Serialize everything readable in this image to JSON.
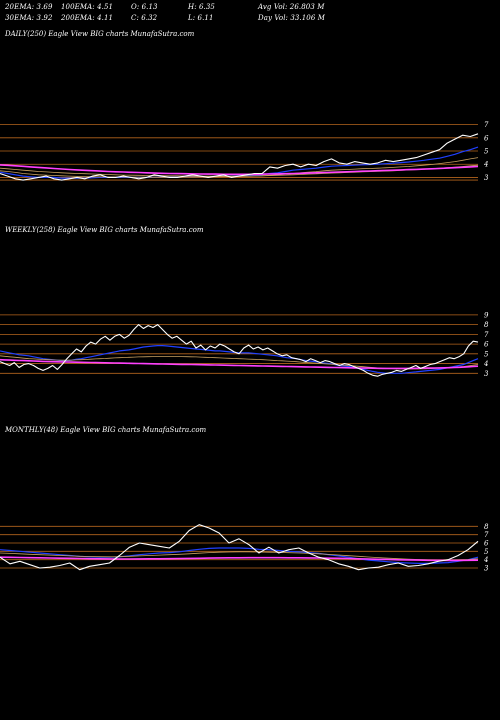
{
  "header": {
    "row1": [
      {
        "text": "20EMA: 3.69"
      },
      {
        "text": "100EMA: 4.51"
      },
      {
        "text": "O: 6.13"
      },
      {
        "text": "H: 6.35"
      },
      {
        "text": "Avg Vol: 26.803  M"
      }
    ],
    "row2": [
      {
        "text": "30EMA: 3.92"
      },
      {
        "text": "200EMA: 4.11"
      },
      {
        "text": "C: 6.32"
      },
      {
        "text": "L: 6.11"
      },
      {
        "text": "Day Vol: 33.106  M"
      }
    ]
  },
  "colors": {
    "background": "#000000",
    "price": "#ffffff",
    "level_line": "#b5651d",
    "ema_fast": "#2040ff",
    "ema_slow": "#ff40ff",
    "ema_mid": "#c8a060"
  },
  "chart_data": [
    {
      "type": "line",
      "label": "DAILY(250) Eagle   View  BIG charts MunafaSutra.com",
      "yticks": [
        "7",
        "6",
        "5",
        "4",
        "3"
      ],
      "ylim": [
        2.2,
        7.5
      ],
      "levels": [
        7,
        6,
        5,
        4,
        3,
        2.8
      ],
      "series": [
        {
          "role": "price",
          "values": [
            3.3,
            3.1,
            2.9,
            2.8,
            2.9,
            3.0,
            3.1,
            2.9,
            2.8,
            2.9,
            3.0,
            2.9,
            3.1,
            3.2,
            3.0,
            3.0,
            3.1,
            3.0,
            2.9,
            3.0,
            3.2,
            3.1,
            3.0,
            3.0,
            3.1,
            3.2,
            3.1,
            3.0,
            3.1,
            3.2,
            3.0,
            3.1,
            3.2,
            3.3,
            3.3,
            3.8,
            3.7,
            3.9,
            4.0,
            3.8,
            4.0,
            3.9,
            4.2,
            4.4,
            4.1,
            4.0,
            4.2,
            4.1,
            4.0,
            4.1,
            4.3,
            4.2,
            4.3,
            4.4,
            4.5,
            4.7,
            4.9,
            5.1,
            5.6,
            5.9,
            6.2,
            6.1,
            6.3
          ]
        },
        {
          "role": "ema_fast",
          "values": [
            3.4,
            3.3,
            3.2,
            3.1,
            3.05,
            3.0,
            3.0,
            3.0,
            2.95,
            2.95,
            2.95,
            2.95,
            2.97,
            3.0,
            3.0,
            3.0,
            3.0,
            3.0,
            3.0,
            3.0,
            3.02,
            3.03,
            3.03,
            3.03,
            3.05,
            3.06,
            3.07,
            3.07,
            3.08,
            3.1,
            3.1,
            3.12,
            3.15,
            3.18,
            3.2,
            3.3,
            3.35,
            3.45,
            3.55,
            3.6,
            3.65,
            3.7,
            3.78,
            3.85,
            3.88,
            3.9,
            3.93,
            3.96,
            3.98,
            4.0,
            4.04,
            4.08,
            4.12,
            4.17,
            4.23,
            4.3,
            4.38,
            4.46,
            4.6,
            4.75,
            4.95,
            5.1,
            5.3
          ]
        },
        {
          "role": "ema_mid",
          "values": [
            3.5,
            3.45,
            3.38,
            3.3,
            3.25,
            3.2,
            3.18,
            3.15,
            3.12,
            3.1,
            3.08,
            3.06,
            3.05,
            3.05,
            3.04,
            3.03,
            3.03,
            3.02,
            3.02,
            3.02,
            3.02,
            3.02,
            3.02,
            3.02,
            3.03,
            3.03,
            3.04,
            3.04,
            3.05,
            3.06,
            3.06,
            3.07,
            3.08,
            3.1,
            3.12,
            3.16,
            3.2,
            3.25,
            3.3,
            3.35,
            3.4,
            3.44,
            3.5,
            3.55,
            3.58,
            3.6,
            3.63,
            3.66,
            3.68,
            3.7,
            3.73,
            3.76,
            3.8,
            3.83,
            3.88,
            3.93,
            3.98,
            4.05,
            4.12,
            4.2,
            4.3,
            4.4,
            4.5
          ]
        },
        {
          "role": "ema_mid",
          "values": [
            3.7,
            3.65,
            3.6,
            3.55,
            3.5,
            3.45,
            3.42,
            3.38,
            3.35,
            3.32,
            3.3,
            3.28,
            3.26,
            3.24,
            3.22,
            3.2,
            3.18,
            3.17,
            3.16,
            3.15,
            3.14,
            3.13,
            3.12,
            3.12,
            3.11,
            3.11,
            3.1,
            3.1,
            3.1,
            3.1,
            3.1,
            3.1,
            3.1,
            3.11,
            3.12,
            3.14,
            3.16,
            3.18,
            3.2,
            3.22,
            3.25,
            3.27,
            3.3,
            3.33,
            3.35,
            3.37,
            3.4,
            3.42,
            3.44,
            3.46,
            3.48,
            3.5,
            3.53,
            3.56,
            3.59,
            3.62,
            3.66,
            3.7,
            3.74,
            3.78,
            3.83,
            3.88,
            3.93
          ]
        },
        {
          "role": "ema_slow",
          "values": [
            3.95,
            3.92,
            3.88,
            3.84,
            3.8,
            3.76,
            3.72,
            3.68,
            3.64,
            3.6,
            3.57,
            3.54,
            3.51,
            3.48,
            3.45,
            3.43,
            3.41,
            3.39,
            3.37,
            3.35,
            3.33,
            3.31,
            3.3,
            3.29,
            3.28,
            3.27,
            3.26,
            3.25,
            3.25,
            3.24,
            3.24,
            3.24,
            3.24,
            3.24,
            3.25,
            3.26,
            3.27,
            3.28,
            3.3,
            3.31,
            3.33,
            3.35,
            3.37,
            3.39,
            3.41,
            3.43,
            3.45,
            3.47,
            3.49,
            3.51,
            3.53,
            3.55,
            3.57,
            3.59,
            3.61,
            3.63,
            3.65,
            3.68,
            3.71,
            3.74,
            3.77,
            3.8,
            3.83
          ]
        }
      ]
    },
    {
      "type": "line",
      "label": "WEEKLY(258) Eagle   View  BIG charts MunafaSutra.com",
      "yticks": [
        "9",
        "8",
        "7",
        "6",
        "5",
        "4",
        "3"
      ],
      "ylim": [
        1.8,
        9.5
      ],
      "levels": [
        9,
        8,
        7,
        6,
        5,
        4,
        3
      ],
      "series": [
        {
          "role": "price",
          "values": [
            4.2,
            4.0,
            3.8,
            4.1,
            3.6,
            3.9,
            4.0,
            3.8,
            3.5,
            3.3,
            3.5,
            3.8,
            3.4,
            3.9,
            4.5,
            5.0,
            5.5,
            5.2,
            5.8,
            6.2,
            6.0,
            6.5,
            6.8,
            6.4,
            6.8,
            7.0,
            6.6,
            6.9,
            7.5,
            8.0,
            7.6,
            7.9,
            7.7,
            8.0,
            7.5,
            7.0,
            6.6,
            6.8,
            6.4,
            6.0,
            6.3,
            5.6,
            5.9,
            5.4,
            5.8,
            5.6,
            6.0,
            5.8,
            5.5,
            5.2,
            5.0,
            5.6,
            5.9,
            5.5,
            5.7,
            5.4,
            5.6,
            5.3,
            5.0,
            4.8,
            4.9,
            4.6,
            4.5,
            4.4,
            4.2,
            4.5,
            4.3,
            4.1,
            4.3,
            4.2,
            4.0,
            3.8,
            4.0,
            3.9,
            3.7,
            3.5,
            3.3,
            3.0,
            2.8,
            2.7,
            2.9,
            3.0,
            3.1,
            3.3,
            3.2,
            3.4,
            3.6,
            3.8,
            3.5,
            3.7,
            3.9,
            4.0,
            4.2,
            4.4,
            4.6,
            4.5,
            4.7,
            5.0,
            5.8,
            6.3,
            6.2
          ]
        },
        {
          "role": "ema_fast",
          "values": [
            5.3,
            5.2,
            5.1,
            5.0,
            4.9,
            4.85,
            4.8,
            4.7,
            4.6,
            4.5,
            4.45,
            4.4,
            4.35,
            4.3,
            4.3,
            4.35,
            4.45,
            4.5,
            4.6,
            4.7,
            4.8,
            4.9,
            5.0,
            5.1,
            5.2,
            5.3,
            5.35,
            5.4,
            5.5,
            5.6,
            5.7,
            5.75,
            5.8,
            5.85,
            5.85,
            5.8,
            5.75,
            5.7,
            5.65,
            5.6,
            5.55,
            5.5,
            5.45,
            5.4,
            5.35,
            5.3,
            5.3,
            5.25,
            5.2,
            5.15,
            5.1,
            5.1,
            5.1,
            5.05,
            5.0,
            4.95,
            4.9,
            4.85,
            4.8,
            4.7,
            4.6,
            4.55,
            4.5,
            4.4,
            4.3,
            4.25,
            4.2,
            4.1,
            4.05,
            4.0,
            3.9,
            3.8,
            3.75,
            3.7,
            3.6,
            3.5,
            3.4,
            3.3,
            3.2,
            3.1,
            3.05,
            3.0,
            3.0,
            3.0,
            3.0,
            3.05,
            3.1,
            3.15,
            3.2,
            3.25,
            3.3,
            3.35,
            3.4,
            3.5,
            3.6,
            3.7,
            3.8,
            3.9,
            4.1,
            4.3,
            4.5
          ]
        },
        {
          "role": "ema_mid",
          "values": [
            4.8,
            4.75,
            4.7,
            4.65,
            4.6,
            4.55,
            4.5,
            4.48,
            4.45,
            4.42,
            4.4,
            4.38,
            4.36,
            4.35,
            4.35,
            4.36,
            4.38,
            4.4,
            4.42,
            4.45,
            4.48,
            4.5,
            4.52,
            4.55,
            4.58,
            4.6,
            4.62,
            4.64,
            4.66,
            4.68,
            4.7,
            4.71,
            4.72,
            4.73,
            4.74,
            4.74,
            4.74,
            4.73,
            4.72,
            4.71,
            4.7,
            4.68,
            4.66,
            4.64,
            4.62,
            4.6,
            4.58,
            4.56,
            4.54,
            4.52,
            4.5,
            4.48,
            4.46,
            4.44,
            4.42,
            4.4,
            4.37,
            4.34,
            4.31,
            4.28,
            4.25,
            4.22,
            4.19,
            4.15,
            4.11,
            4.08,
            4.05,
            4.01,
            3.98,
            3.95,
            3.91,
            3.87,
            3.84,
            3.8,
            3.76,
            3.72,
            3.68,
            3.64,
            3.6,
            3.56,
            3.53,
            3.5,
            3.48,
            3.46,
            3.45,
            3.44,
            3.44,
            3.44,
            3.45,
            3.46,
            3.48,
            3.5,
            3.52,
            3.55,
            3.58,
            3.62,
            3.66,
            3.7,
            3.76,
            3.83,
            3.9
          ]
        },
        {
          "role": "ema_slow",
          "values": [
            4.4,
            4.38,
            4.36,
            4.34,
            4.32,
            4.3,
            4.28,
            4.26,
            4.24,
            4.22,
            4.2,
            4.19,
            4.18,
            4.17,
            4.16,
            4.15,
            4.14,
            4.13,
            4.12,
            4.11,
            4.1,
            4.09,
            4.08,
            4.07,
            4.06,
            4.05,
            4.04,
            4.03,
            4.02,
            4.01,
            4.0,
            3.99,
            3.98,
            3.97,
            3.96,
            3.95,
            3.94,
            3.93,
            3.92,
            3.91,
            3.9,
            3.89,
            3.88,
            3.87,
            3.86,
            3.85,
            3.84,
            3.83,
            3.82,
            3.81,
            3.8,
            3.79,
            3.78,
            3.77,
            3.76,
            3.75,
            3.74,
            3.73,
            3.72,
            3.71,
            3.7,
            3.69,
            3.68,
            3.67,
            3.66,
            3.65,
            3.64,
            3.63,
            3.62,
            3.61,
            3.6,
            3.59,
            3.58,
            3.57,
            3.56,
            3.55,
            3.54,
            3.53,
            3.52,
            3.51,
            3.5,
            3.5,
            3.5,
            3.5,
            3.5,
            3.5,
            3.5,
            3.51,
            3.52,
            3.53,
            3.54,
            3.55,
            3.56,
            3.57,
            3.58,
            3.6,
            3.62,
            3.64,
            3.67,
            3.7,
            3.73
          ]
        }
      ]
    },
    {
      "type": "line",
      "label": "MONTHLY(48) Eagle   View  BIG charts MunafaSutra.com",
      "yticks": [
        "8",
        "7",
        "6",
        "5",
        "4",
        "3"
      ],
      "ylim": [
        1.8,
        9.0
      ],
      "levels": [
        8,
        7,
        6,
        5,
        4,
        3
      ],
      "series": [
        {
          "role": "price",
          "values": [
            4.3,
            3.5,
            3.8,
            3.4,
            3.0,
            3.1,
            3.3,
            3.6,
            2.8,
            3.2,
            3.4,
            3.6,
            4.5,
            5.5,
            6.0,
            5.8,
            5.6,
            5.4,
            6.2,
            7.5,
            8.2,
            7.8,
            7.2,
            6.0,
            6.5,
            5.8,
            4.8,
            5.5,
            4.8,
            5.2,
            5.4,
            4.8,
            4.3,
            4.0,
            3.5,
            3.2,
            2.8,
            3.0,
            3.1,
            3.4,
            3.6,
            3.2,
            3.3,
            3.5,
            3.8,
            4.0,
            4.5,
            5.2,
            6.2
          ]
        },
        {
          "role": "ema_fast",
          "values": [
            5.2,
            5.1,
            5.0,
            4.9,
            4.8,
            4.7,
            4.6,
            4.5,
            4.4,
            4.35,
            4.3,
            4.3,
            4.35,
            4.45,
            4.6,
            4.7,
            4.8,
            4.85,
            4.95,
            5.1,
            5.25,
            5.35,
            5.4,
            5.4,
            5.4,
            5.35,
            5.25,
            5.2,
            5.1,
            5.0,
            4.95,
            4.85,
            4.75,
            4.6,
            4.45,
            4.3,
            4.1,
            3.95,
            3.85,
            3.75,
            3.65,
            3.6,
            3.55,
            3.55,
            3.6,
            3.65,
            3.8,
            4.0,
            4.3
          ]
        },
        {
          "role": "ema_mid",
          "values": [
            4.8,
            4.75,
            4.7,
            4.65,
            4.6,
            4.55,
            4.5,
            4.45,
            4.4,
            4.38,
            4.36,
            4.35,
            4.36,
            4.4,
            4.45,
            4.5,
            4.55,
            4.6,
            4.65,
            4.7,
            4.78,
            4.85,
            4.9,
            4.92,
            4.94,
            4.94,
            4.92,
            4.9,
            4.87,
            4.84,
            4.8,
            4.75,
            4.7,
            4.63,
            4.56,
            4.48,
            4.4,
            4.32,
            4.25,
            4.18,
            4.12,
            4.07,
            4.02,
            3.99,
            3.97,
            3.96,
            3.98,
            4.02,
            4.1
          ]
        },
        {
          "role": "ema_slow",
          "values": [
            4.3,
            4.28,
            4.26,
            4.24,
            4.22,
            4.2,
            4.18,
            4.16,
            4.14,
            4.12,
            4.1,
            4.09,
            4.08,
            4.08,
            4.09,
            4.1,
            4.11,
            4.12,
            4.13,
            4.15,
            4.17,
            4.19,
            4.21,
            4.22,
            4.23,
            4.24,
            4.24,
            4.24,
            4.24,
            4.23,
            4.22,
            4.21,
            4.2,
            4.18,
            4.16,
            4.14,
            4.11,
            4.08,
            4.05,
            4.02,
            3.99,
            3.97,
            3.95,
            3.93,
            3.92,
            3.91,
            3.91,
            3.92,
            3.94
          ]
        }
      ]
    }
  ]
}
